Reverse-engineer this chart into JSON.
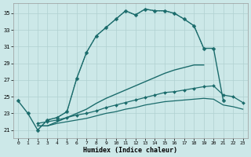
{
  "xlabel": "Humidex (Indice chaleur)",
  "background_color": "#cce8e8",
  "grid_color": "#b0d0d0",
  "line_color": "#1a6b6b",
  "xlim": [
    -0.5,
    23.5
  ],
  "ylim": [
    20.0,
    36.2
  ],
  "yticks": [
    21,
    23,
    25,
    27,
    29,
    31,
    33,
    35
  ],
  "xticks": [
    0,
    1,
    2,
    3,
    4,
    5,
    6,
    7,
    8,
    9,
    10,
    11,
    12,
    13,
    14,
    15,
    16,
    17,
    18,
    19,
    20,
    21,
    22,
    23
  ],
  "lines": [
    {
      "x": [
        0,
        1,
        2,
        3,
        4,
        5,
        6,
        7,
        8,
        9,
        10,
        11,
        12,
        13,
        14,
        15,
        16,
        17,
        18,
        19,
        20,
        21
      ],
      "y": [
        24.5,
        23.0,
        21.0,
        22.2,
        22.5,
        23.2,
        27.2,
        30.3,
        32.3,
        33.3,
        34.3,
        35.3,
        34.8,
        35.5,
        35.3,
        35.3,
        35.0,
        34.3,
        33.5,
        30.8,
        30.8,
        24.5
      ],
      "marker": "D",
      "ms": 2.5,
      "lw": 1.0,
      "dotted": false
    },
    {
      "x": [
        2,
        3,
        4,
        5,
        6,
        7,
        8,
        9,
        10,
        11,
        12,
        13,
        14,
        15,
        16,
        17,
        18,
        19
      ],
      "y": [
        21.0,
        22.2,
        22.5,
        23.2,
        27.2,
        30.3,
        32.3,
        33.3,
        34.3,
        35.3,
        34.8,
        35.5,
        35.3,
        35.3,
        35.0,
        34.3,
        33.5,
        30.8
      ],
      "marker": null,
      "ms": 0,
      "lw": 0.8,
      "dotted": true
    },
    {
      "x": [
        2,
        3,
        4,
        5,
        6,
        7,
        8,
        9,
        10,
        11,
        12,
        13,
        14,
        15,
        16,
        17,
        18,
        19
      ],
      "y": [
        21.5,
        21.5,
        22.0,
        22.5,
        23.0,
        23.5,
        24.2,
        24.8,
        25.3,
        25.8,
        26.3,
        26.8,
        27.3,
        27.8,
        28.2,
        28.5,
        28.8,
        28.8
      ],
      "marker": null,
      "ms": 0,
      "lw": 1.0,
      "dotted": false
    },
    {
      "x": [
        2,
        3,
        4,
        5,
        6,
        7,
        8,
        9,
        10,
        11,
        12,
        13,
        14,
        15,
        16,
        17,
        18,
        19,
        20,
        21,
        22,
        23
      ],
      "y": [
        21.8,
        22.0,
        22.2,
        22.5,
        22.8,
        23.0,
        23.3,
        23.7,
        24.0,
        24.3,
        24.6,
        24.9,
        25.2,
        25.5,
        25.6,
        25.8,
        26.0,
        26.2,
        26.3,
        25.2,
        25.0,
        24.3
      ],
      "marker": "D",
      "ms": 2.0,
      "lw": 0.9,
      "dotted": false
    },
    {
      "x": [
        2,
        3,
        4,
        5,
        6,
        7,
        8,
        9,
        10,
        11,
        12,
        13,
        14,
        15,
        16,
        17,
        18,
        19,
        20,
        21,
        22,
        23
      ],
      "y": [
        21.5,
        21.5,
        21.8,
        22.0,
        22.2,
        22.4,
        22.7,
        23.0,
        23.2,
        23.5,
        23.7,
        24.0,
        24.2,
        24.4,
        24.5,
        24.6,
        24.7,
        24.8,
        24.7,
        24.0,
        23.8,
        23.5
      ],
      "marker": null,
      "ms": 0,
      "lw": 0.9,
      "dotted": false
    }
  ]
}
